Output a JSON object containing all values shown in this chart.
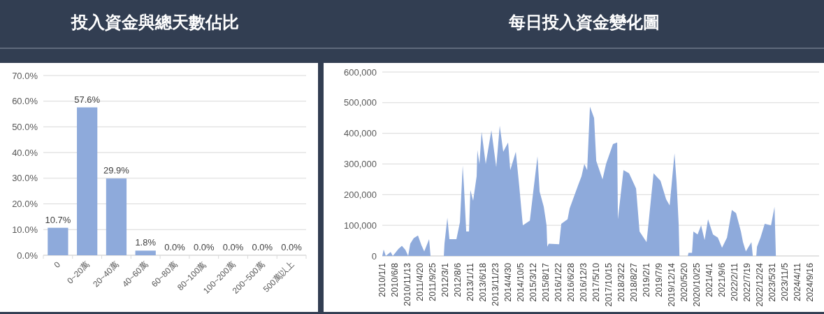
{
  "chart_data": [
    {
      "type": "bar",
      "title": "投入資金與總天數佔比",
      "categories": [
        "0",
        "0~20萬",
        "20~40萬",
        "40~60萬",
        "60~80萬",
        "80~100萬",
        "100~200萬",
        "200~500萬",
        "500萬以上"
      ],
      "values": [
        10.7,
        57.6,
        29.9,
        1.8,
        0,
        0,
        0,
        0,
        0
      ],
      "value_labels": [
        "10.7%",
        "57.6%",
        "29.9%",
        "1.8%",
        "0.0%",
        "0.0%",
        "0.0%",
        "0.0%",
        "0.0%"
      ],
      "color": "#8eaadb",
      "ylim": [
        0,
        70
      ],
      "yticks": [
        {
          "value": 0,
          "label": "0.0%"
        },
        {
          "value": 10,
          "label": "10.0%"
        },
        {
          "value": 20,
          "label": "20.0%"
        },
        {
          "value": 30,
          "label": "30.0%"
        },
        {
          "value": 40,
          "label": "40.0%"
        },
        {
          "value": 50,
          "label": "50.0%"
        },
        {
          "value": 60,
          "label": "60.0%"
        },
        {
          "value": 70,
          "label": "70.0%"
        }
      ],
      "grid": "y"
    },
    {
      "type": "area",
      "title": "每日投入資金變化圖",
      "color": "#8eaadb",
      "grid": "y",
      "ylim": [
        0,
        600000
      ],
      "yticks": [
        {
          "value": 0,
          "label": "0"
        },
        {
          "value": 100000,
          "label": "100,000"
        },
        {
          "value": 200000,
          "label": "200,000"
        },
        {
          "value": 300000,
          "label": "300,000"
        },
        {
          "value": 400000,
          "label": "400,000"
        },
        {
          "value": 500000,
          "label": "500,000"
        },
        {
          "value": 600000,
          "label": "600,000"
        }
      ],
      "xlim": [
        "2010-01-01",
        "2025-01-08"
      ],
      "xticks": [
        {
          "value": "2010-01-01",
          "label": "2010/1/1"
        },
        {
          "value": "2010-06-08",
          "label": "2010/6/8"
        },
        {
          "value": "2010-11-13",
          "label": "2010/11/13"
        },
        {
          "value": "2011-04-20",
          "label": "2011/4/20"
        },
        {
          "value": "2011-09-25",
          "label": "2011/9/25"
        },
        {
          "value": "2012-03-01",
          "label": "2012/3/1"
        },
        {
          "value": "2012-08-06",
          "label": "2012/8/6"
        },
        {
          "value": "2013-01-11",
          "label": "2013/1/11"
        },
        {
          "value": "2013-06-18",
          "label": "2013/6/18"
        },
        {
          "value": "2013-11-23",
          "label": "2013/11/23"
        },
        {
          "value": "2014-04-30",
          "label": "2014/4/30"
        },
        {
          "value": "2014-10-05",
          "label": "2014/10/5"
        },
        {
          "value": "2015-03-12",
          "label": "2015/3/12"
        },
        {
          "value": "2015-08-17",
          "label": "2015/8/17"
        },
        {
          "value": "2016-01-22",
          "label": "2016/1/22"
        },
        {
          "value": "2016-06-28",
          "label": "2016/6/28"
        },
        {
          "value": "2016-12-03",
          "label": "2016/12/3"
        },
        {
          "value": "2017-05-10",
          "label": "2017/5/10"
        },
        {
          "value": "2017-10-15",
          "label": "2017/10/15"
        },
        {
          "value": "2018-03-22",
          "label": "2018/3/22"
        },
        {
          "value": "2018-08-27",
          "label": "2018/8/27"
        },
        {
          "value": "2019-02-01",
          "label": "2019/2/1"
        },
        {
          "value": "2019-07-09",
          "label": "2019/7/9"
        },
        {
          "value": "2019-12-14",
          "label": "2019/12/14"
        },
        {
          "value": "2020-05-20",
          "label": "2020/5/20"
        },
        {
          "value": "2020-10-25",
          "label": "2020/10/25"
        },
        {
          "value": "2021-04-01",
          "label": "2021/4/1"
        },
        {
          "value": "2021-09-06",
          "label": "2021/9/6"
        },
        {
          "value": "2022-02-11",
          "label": "2022/2/11"
        },
        {
          "value": "2022-07-19",
          "label": "2022/7/19"
        },
        {
          "value": "2022-12-24",
          "label": "2022/12/24"
        },
        {
          "value": "2023-05-31",
          "label": "2023/5/31"
        },
        {
          "value": "2023-11-05",
          "label": "2023/11/5"
        },
        {
          "value": "2024-04-11",
          "label": "2024/4/11"
        },
        {
          "value": "2024-09-16",
          "label": "2024/9/16"
        }
      ],
      "x": [
        "2010-01-01",
        "2010-01-18",
        "2010-02-14",
        "2010-04-16",
        "2010-05-13",
        "2010-07-22",
        "2010-09-04",
        "2010-10-18",
        "2010-11-22",
        "2010-12-18",
        "2011-01-31",
        "2011-03-25",
        "2011-05-08",
        "2011-06-12",
        "2011-08-12",
        "2011-08-30",
        "2012-02-13",
        "2012-02-21",
        "2012-03-28",
        "2012-04-23",
        "2012-07-20",
        "2012-09-02",
        "2012-10-07",
        "2012-10-24",
        "2012-11-20",
        "2012-12-25",
        "2013-01-11",
        "2013-02-15",
        "2013-03-31",
        "2013-04-09",
        "2013-05-05",
        "2013-06-01",
        "2013-07-23",
        "2013-10-02",
        "2013-12-02",
        "2014-01-15",
        "2014-02-28",
        "2014-04-30",
        "2014-05-27",
        "2014-08-05",
        "2014-09-18",
        "2014-11-01",
        "2015-01-28",
        "2015-03-12",
        "2015-05-04",
        "2015-05-31",
        "2015-07-22",
        "2015-08-26",
        "2015-09-04",
        "2015-09-22",
        "2016-01-31",
        "2016-02-27",
        "2016-05-16",
        "2016-06-11",
        "2016-09-24",
        "2016-11-07",
        "2016-12-12",
        "2017-01-17",
        "2017-02-21",
        "2017-04-14",
        "2017-05-11",
        "2017-07-29",
        "2017-09-11",
        "2017-12-07",
        "2018-01-29",
        "2018-02-07",
        "2018-04-18",
        "2018-06-27",
        "2018-09-23",
        "2018-11-06",
        "2019-02-02",
        "2019-02-28",
        "2019-05-01",
        "2019-07-27",
        "2019-10-06",
        "2019-11-19",
        "2020-01-19",
        "2020-02-14",
        "2020-03-12",
        "2020-03-21",
        "2020-07-04",
        "2020-07-13",
        "2020-08-26",
        "2020-09-12",
        "2020-11-04",
        "2020-12-18",
        "2021-01-31",
        "2021-03-15",
        "2021-05-16",
        "2021-07-16",
        "2021-09-07",
        "2021-11-08",
        "2022-01-08",
        "2022-03-02",
        "2022-05-02",
        "2022-05-28",
        "2022-07-03",
        "2022-09-11",
        "2022-09-28",
        "2022-11-11",
        "2022-11-20",
        "2023-01-03",
        "2023-02-25",
        "2023-05-15",
        "2023-06-28",
        "2023-07-15",
        "2025-01-08"
      ],
      "values": [
        0,
        21000,
        0,
        13000,
        0,
        23000,
        33000,
        20000,
        0,
        40000,
        58000,
        67000,
        35000,
        15000,
        55000,
        0,
        0,
        40000,
        125000,
        55000,
        55000,
        110000,
        295000,
        220000,
        80000,
        80000,
        215000,
        180000,
        260000,
        345000,
        300000,
        405000,
        300000,
        410000,
        290000,
        425000,
        340000,
        370000,
        280000,
        340000,
        225000,
        100000,
        115000,
        210000,
        325000,
        210000,
        160000,
        100000,
        30000,
        40000,
        38000,
        105000,
        120000,
        155000,
        230000,
        260000,
        300000,
        280000,
        487000,
        450000,
        310000,
        250000,
        300000,
        365000,
        370000,
        120000,
        280000,
        270000,
        220000,
        80000,
        45000,
        110000,
        270000,
        245000,
        185000,
        165000,
        335000,
        240000,
        100000,
        0,
        0,
        10000,
        10000,
        80000,
        70000,
        100000,
        52000,
        120000,
        70000,
        60000,
        27000,
        60000,
        150000,
        140000,
        80000,
        45000,
        15000,
        45000,
        0,
        0,
        30000,
        60000,
        105000,
        100000,
        160000,
        0,
        0
      ]
    }
  ]
}
